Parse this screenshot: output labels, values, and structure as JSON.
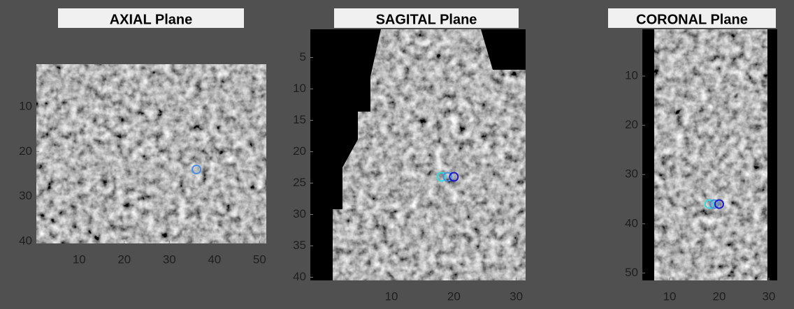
{
  "panels": [
    {
      "title": "AXIAL Plane",
      "xlim": [
        0.5,
        51.5
      ],
      "ylim": [
        0.5,
        40.5
      ],
      "xticks": [
        10,
        20,
        30,
        40,
        50
      ],
      "yticks": [
        10,
        20,
        30,
        40
      ],
      "markers": [
        {
          "x": 36,
          "y": 24,
          "color": "#4a90e2"
        }
      ]
    },
    {
      "title": "SAGITAL Plane",
      "xlim": [
        -3,
        31.5
      ],
      "ylim": [
        0.5,
        40.5
      ],
      "xticks": [
        10,
        20,
        30
      ],
      "yticks": [
        5,
        10,
        15,
        20,
        25,
        30,
        35,
        40
      ],
      "markers": [
        {
          "x": 18,
          "y": 24,
          "color": "#33dddd"
        },
        {
          "x": 19,
          "y": 24,
          "color": "#4a90e2"
        },
        {
          "x": 20,
          "y": 24,
          "color": "#1a1ad0"
        }
      ]
    },
    {
      "title": "CORONAL Plane",
      "xlim": [
        4.5,
        31.7
      ],
      "ylim": [
        0.5,
        51.5
      ],
      "xticks": [
        10,
        20,
        30
      ],
      "yticks": [
        10,
        20,
        30,
        40,
        50
      ],
      "markers": [
        {
          "x": 18,
          "y": 36,
          "color": "#33dddd"
        },
        {
          "x": 19,
          "y": 36,
          "color": "#4a90e2"
        },
        {
          "x": 20,
          "y": 36,
          "color": "#1a1ad0"
        }
      ]
    }
  ]
}
